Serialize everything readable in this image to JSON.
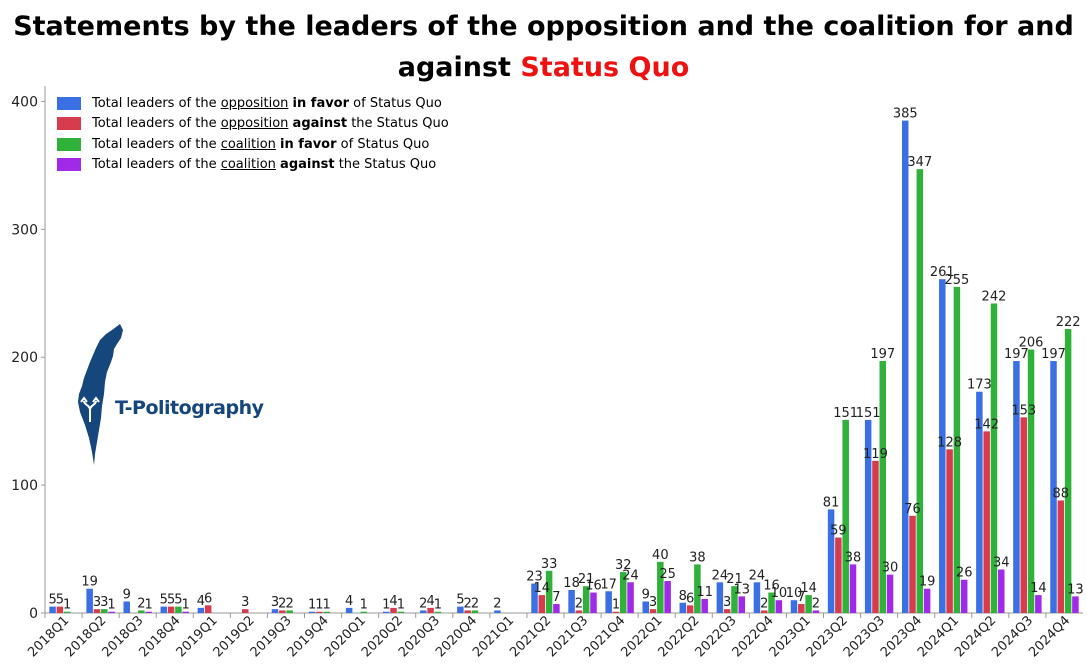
{
  "title": {
    "line1": "Statements by the leaders of the opposition and the coalition for and",
    "line2_prefix": "against ",
    "line2_highlight": "Status Quo"
  },
  "legend": [
    {
      "prefix": "Total leaders of the ",
      "group": "opposition",
      "stance": "in favor",
      "suffix": " of Status Quo",
      "color": "#3b6fe4"
    },
    {
      "prefix": "Total leaders of the ",
      "group": "opposition",
      "stance": "against",
      "suffix": " the Status Quo",
      "color": "#d63c4e"
    },
    {
      "prefix": "Total leaders of the ",
      "group": "coalition",
      "stance": "in favor",
      "suffix": " of Status Quo",
      "color": "#2fb13a"
    },
    {
      "prefix": "Total leaders of the ",
      "group": "coalition",
      "stance": "against",
      "suffix": " the Status Quo",
      "color": "#a12ae8"
    }
  ],
  "logo": {
    "text": "T-Politography",
    "color": "#15467c"
  },
  "chart_data": {
    "type": "bar",
    "categories": [
      "2018Q1",
      "2018Q2",
      "2018Q3",
      "2018Q4",
      "2019Q1",
      "2019Q2",
      "2019Q3",
      "2019Q4",
      "2020Q1",
      "2020Q2",
      "2020Q3",
      "2020Q4",
      "2021Q1",
      "2021Q2",
      "2021Q3",
      "2021Q4",
      "2022Q1",
      "2022Q2",
      "2022Q3",
      "2022Q4",
      "2023Q1",
      "2023Q2",
      "2023Q3",
      "2023Q4",
      "2024Q1",
      "2024Q2",
      "2024Q3",
      "2024Q4"
    ],
    "series": [
      {
        "name": "Total leaders of the opposition in favor of Status Quo",
        "color": "#3b6fe4",
        "values": [
          5,
          19,
          9,
          5,
          4,
          null,
          3,
          1,
          4,
          1,
          2,
          5,
          2,
          23,
          18,
          17,
          9,
          8,
          24,
          24,
          10,
          81,
          151,
          385,
          261,
          173,
          197,
          197
        ]
      },
      {
        "name": "Total leaders of the opposition against the Status Quo",
        "color": "#d63c4e",
        "values": [
          5,
          3,
          null,
          5,
          6,
          3,
          2,
          1,
          null,
          4,
          4,
          2,
          null,
          14,
          2,
          1,
          3,
          6,
          3,
          2,
          7,
          59,
          119,
          76,
          128,
          142,
          153,
          88
        ]
      },
      {
        "name": "Total leaders of the coalition in favor of Status Quo",
        "color": "#2fb13a",
        "values": [
          1,
          3,
          2,
          5,
          null,
          null,
          2,
          1,
          1,
          1,
          1,
          2,
          null,
          33,
          21,
          32,
          40,
          38,
          21,
          16,
          14,
          151,
          197,
          347,
          255,
          242,
          206,
          222
        ]
      },
      {
        "name": "Total leaders of the coalition against the Status Quo",
        "color": "#a12ae8",
        "values": [
          null,
          1,
          1,
          1,
          null,
          null,
          null,
          null,
          null,
          null,
          null,
          null,
          null,
          7,
          16,
          24,
          25,
          11,
          13,
          10,
          2,
          38,
          30,
          19,
          26,
          34,
          14,
          13
        ]
      }
    ],
    "yticks": [
      0,
      100,
      200,
      300,
      400
    ],
    "ylim": [
      0,
      412
    ],
    "xlabel": "",
    "ylabel": "",
    "grid": false,
    "legend_position": "top-left"
  }
}
